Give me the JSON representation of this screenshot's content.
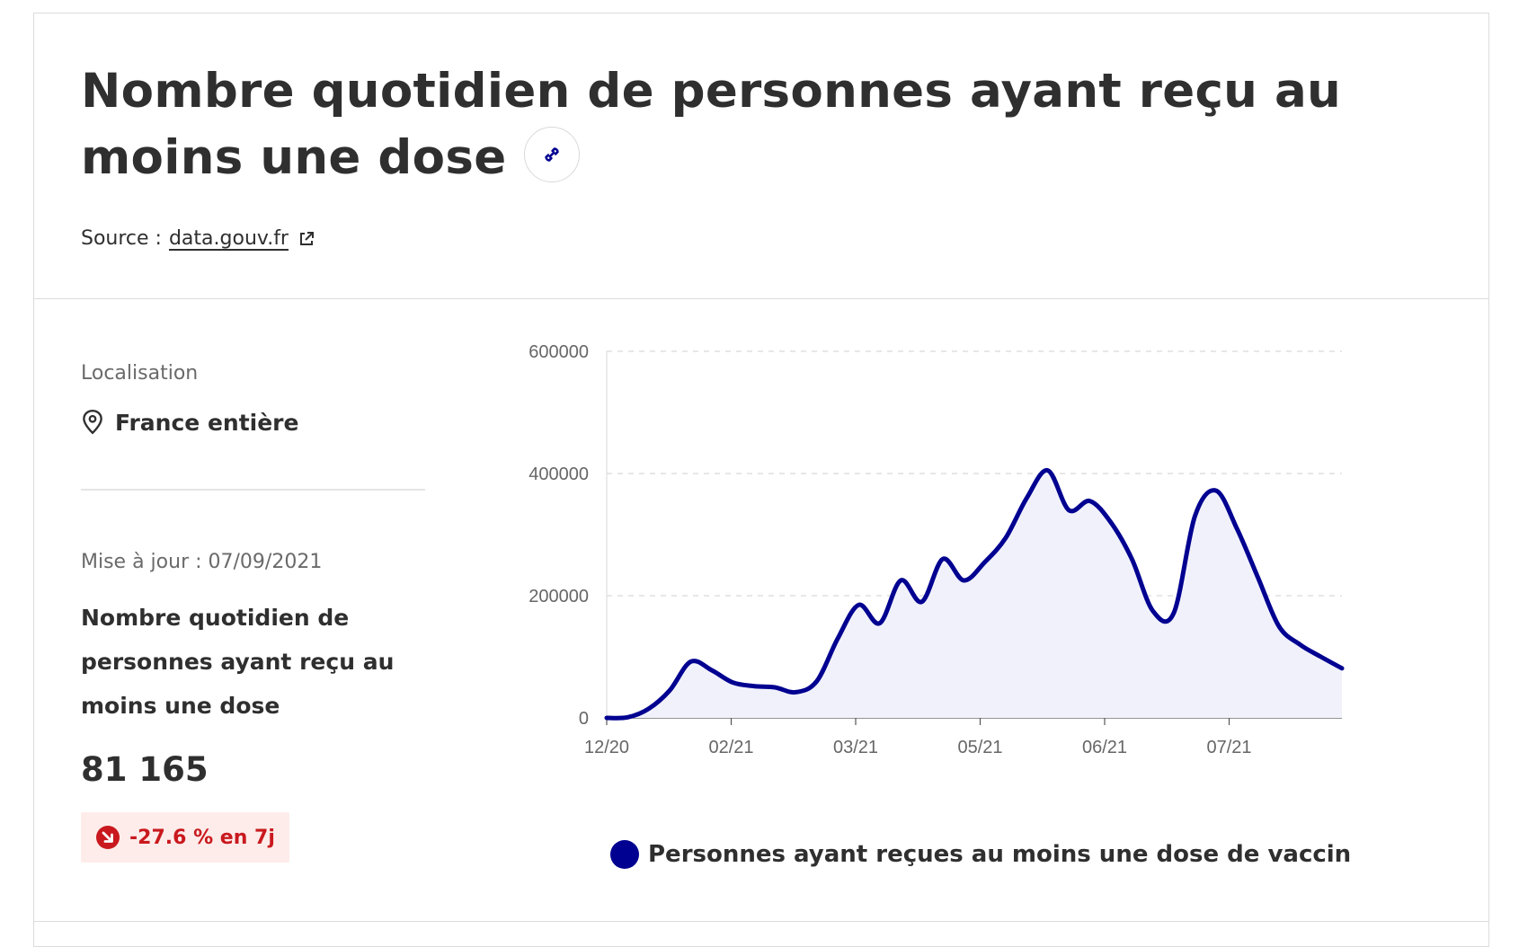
{
  "title": "Nombre quotidien de personnes ayant reçu au moins une dose",
  "source": {
    "label": "Source :",
    "link_text": "data.gouv.fr"
  },
  "location": {
    "label": "Localisation",
    "value": "France entière"
  },
  "update": "Mise à jour : 07/09/2021",
  "metric": {
    "title": "Nombre quotidien de personnes ayant reçu au moins une dose",
    "value": "81 165",
    "trend": "-27.6 % en 7j"
  },
  "colors": {
    "series": "#000091",
    "fill": "#f1f1fb",
    "trend_bg": "#fdecea",
    "trend_text": "#c9191e"
  },
  "icons": {
    "link": "link-icon",
    "pin": "location-pin-icon",
    "external": "external-link-icon",
    "trend": "arrow-down-right-icon"
  },
  "chart_data": {
    "type": "area",
    "title": "",
    "xlabel": "",
    "ylabel": "",
    "ylim": [
      0,
      600000
    ],
    "yticks": [
      "0",
      "200000",
      "400000",
      "600000"
    ],
    "xticks": [
      "12/20",
      "02/21",
      "03/21",
      "05/21",
      "06/21",
      "07/21"
    ],
    "grid": true,
    "legend": "bottom",
    "series": [
      {
        "name": "Personnes ayant reçues au moins une dose de vaccin",
        "values": [
          0,
          1000,
          15000,
          45000,
          92000,
          78000,
          58000,
          52000,
          50000,
          42000,
          60000,
          130000,
          185000,
          155000,
          225000,
          190000,
          260000,
          225000,
          255000,
          295000,
          360000,
          405000,
          340000,
          355000,
          320000,
          260000,
          175000,
          172000,
          330000,
          372000,
          310000,
          230000,
          150000,
          120000,
          100000,
          81165
        ]
      }
    ]
  }
}
